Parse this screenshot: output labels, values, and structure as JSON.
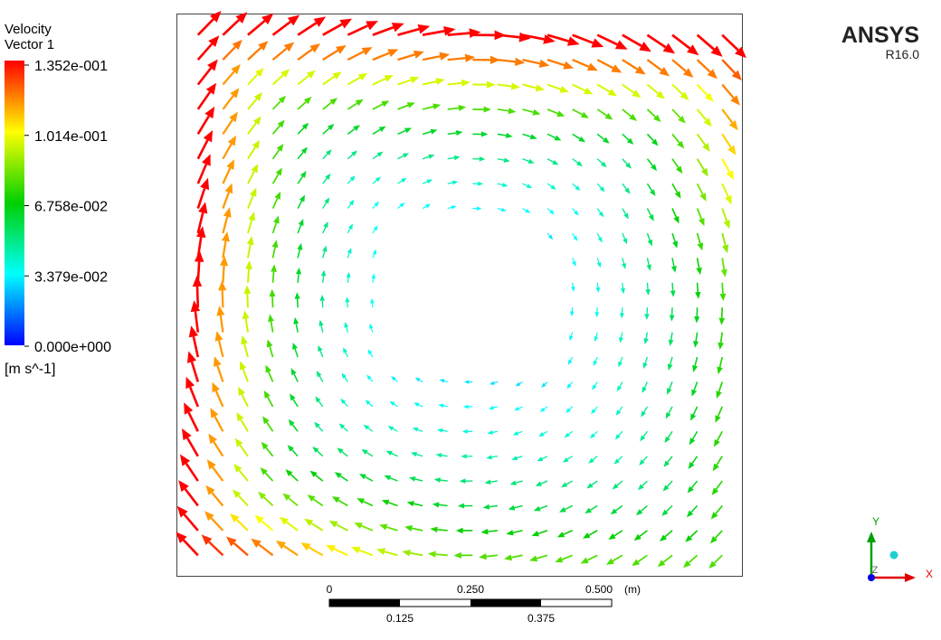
{
  "legend": {
    "title": [
      "Velocity",
      "Vector 1"
    ],
    "ticks": [
      "1.352e-001",
      "1.014e-001",
      "6.758e-002",
      "3.379e-002",
      "0.000e+000"
    ],
    "unit": "[m s^-1]"
  },
  "logo": {
    "name": "ANSYS",
    "version": "R16.0"
  },
  "scale_bar": {
    "top_labels": [
      "0",
      "0.250",
      "0.500"
    ],
    "unit": "(m)",
    "bottom_labels": [
      "0.125",
      "0.375"
    ]
  },
  "triad": {
    "y": "Y",
    "z": "Z",
    "x": "X"
  }
}
